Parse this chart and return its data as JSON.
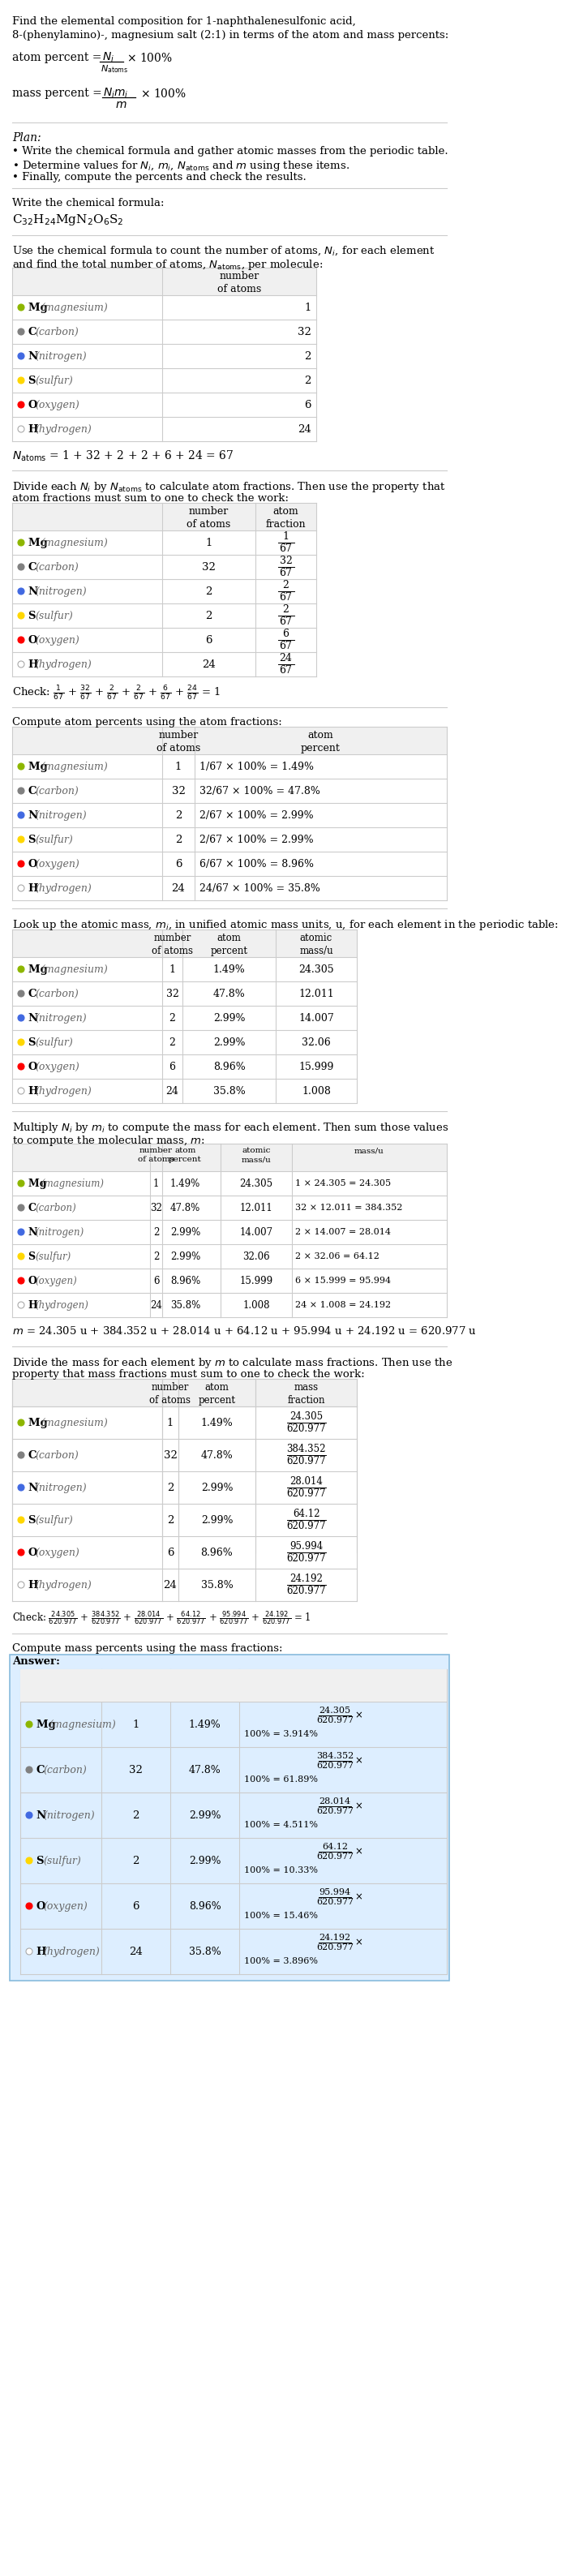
{
  "title_line1": "Find the elemental composition for 1-naphthalenesulfonic acid,",
  "title_line2": "8-(phenylamino)-, magnesium salt (2:1) in terms of the atom and mass percents:",
  "symbols": [
    "Mg",
    "C",
    "N",
    "S",
    "O",
    "H"
  ],
  "names": [
    "magnesium",
    "carbon",
    "nitrogen",
    "sulfur",
    "oxygen",
    "hydrogen"
  ],
  "dot_colors": [
    "#8db600",
    "#808080",
    "#4169e1",
    "#ffd700",
    "#ff0000",
    "#ffffff"
  ],
  "dot_edge_colors": [
    "#8db600",
    "#808080",
    "#4169e1",
    "#ffd700",
    "#ff0000",
    "#aaaaaa"
  ],
  "n_atoms": [
    1,
    32,
    2,
    2,
    6,
    24
  ],
  "n_total": 67,
  "atom_fractions": [
    "1/67",
    "32/67",
    "2/67",
    "2/67",
    "6/67",
    "24/67"
  ],
  "atom_percents": [
    "1.49%",
    "47.8%",
    "2.99%",
    "2.99%",
    "8.96%",
    "35.8%"
  ],
  "atom_percent_exprs": [
    "1/67 × 100% = 1.49%",
    "32/67 × 100% = 47.8%",
    "2/67 × 100% = 2.99%",
    "2/67 × 100% = 2.99%",
    "6/67 × 100% = 8.96%",
    "24/67 × 100% = 35.8%"
  ],
  "atomic_masses": [
    "24.305",
    "12.011",
    "14.007",
    "32.06",
    "15.999",
    "1.008"
  ],
  "mass_exprs": [
    "1 × 24.305 = 24.305",
    "32 × 12.011 = 384.352",
    "2 × 14.007 = 28.014",
    "2 × 32.06 = 64.12",
    "6 × 15.999 = 95.994",
    "24 × 1.008 = 24.192"
  ],
  "masses": [
    "24.305",
    "384.352",
    "28.014",
    "64.12",
    "95.994",
    "24.192"
  ],
  "mass_total_expr": "m = 24.305 u + 384.352 u + 28.014 u + 64.12 u + 95.994 u + 24.192 u = 620.977 u",
  "mass_total": "620.977",
  "mass_fractions": [
    "24.305/620.977",
    "384.352/620.977",
    "28.014/620.977",
    "64.12/620.977",
    "95.994/620.977",
    "24.192/620.977"
  ],
  "mass_percents": [
    "3.914%",
    "61.89%",
    "4.511%",
    "10.33%",
    "15.46%",
    "3.896%"
  ],
  "mass_percent_nums": [
    "24.305",
    "384.352",
    "28.014",
    "64.12",
    "95.994",
    "24.192"
  ],
  "answer_bg": "#ddeeff",
  "answer_border": "#88bbdd"
}
